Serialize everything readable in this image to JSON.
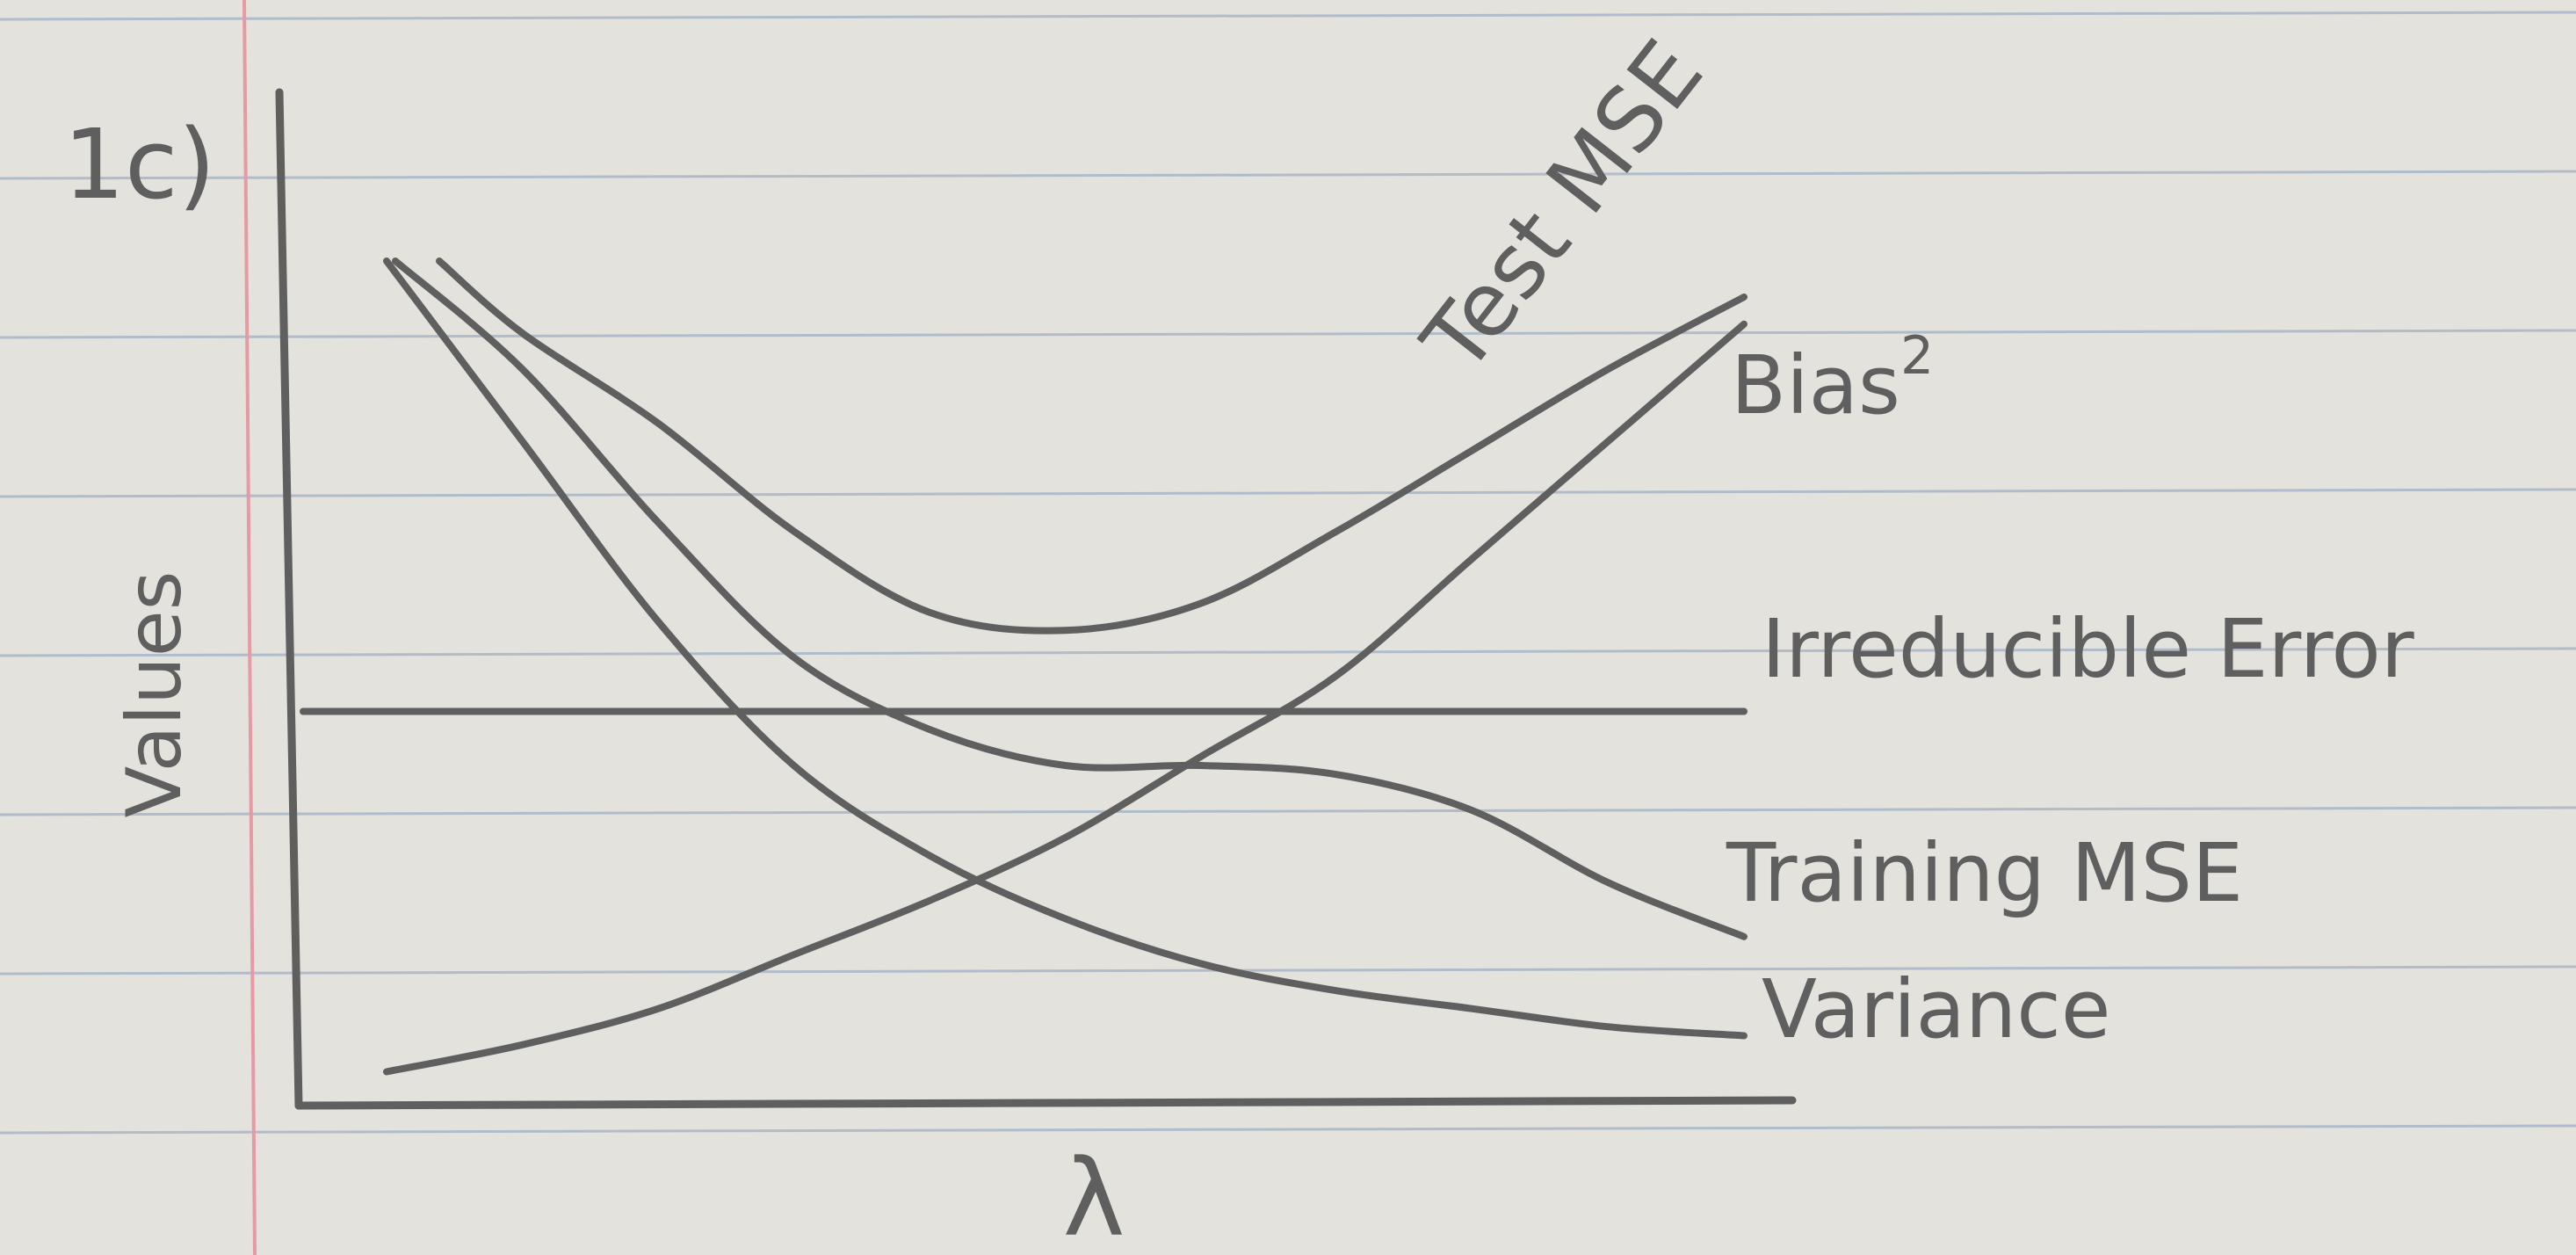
{
  "problem_label": "1c)",
  "colors": {
    "paper": "#e4e2dc",
    "rule_line": "#9fb0c4",
    "margin_line": "#e59aa6",
    "pencil": "#5f5f60"
  },
  "chart_data": {
    "type": "line",
    "title": "",
    "xlabel": "λ",
    "ylabel": "Values",
    "xlim": [
      0,
      100
    ],
    "ylim": [
      0,
      100
    ],
    "grid": false,
    "legend": "inline labels at right end of each curve",
    "x": [
      0,
      10,
      20,
      30,
      40,
      50,
      60,
      70,
      80,
      90,
      100
    ],
    "series": [
      {
        "name": "Test MSE",
        "label_main": "Test MSE",
        "label_sup": "",
        "values": [
          92,
          84,
          74,
          62,
          53,
          51,
          54,
          62,
          71,
          80,
          88
        ]
      },
      {
        "name": "Bias²",
        "label_main": "Bias",
        "label_sup": "2",
        "values": [
          2,
          5,
          9,
          15,
          21,
          28,
          37,
          46,
          59,
          72,
          85
        ]
      },
      {
        "name": "Irreducible Error",
        "label_main": "Irreducible Error",
        "label_sup": "",
        "values": [
          42,
          42,
          42,
          42,
          42,
          42,
          42,
          42,
          42,
          42,
          42
        ]
      },
      {
        "name": "Training MSE",
        "label_main": "Training MSE",
        "label_sup": "",
        "values": [
          92,
          80,
          63,
          48,
          40,
          36,
          36,
          35,
          31,
          23,
          17
        ]
      },
      {
        "name": "Variance",
        "label_main": "Variance",
        "label_sup": "",
        "values": [
          92,
          72,
          52,
          36,
          26,
          19,
          14,
          11,
          9,
          7,
          6
        ]
      }
    ]
  }
}
